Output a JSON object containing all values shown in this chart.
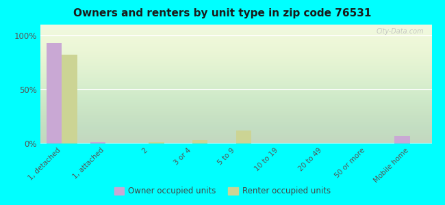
{
  "title": "Owners and renters by unit type in zip code 76531",
  "categories": [
    "1, detached",
    "1, attached",
    "2",
    "3 or 4",
    "5 to 9",
    "10 to 19",
    "20 to 49",
    "50 or more",
    "Mobile home"
  ],
  "owner_values": [
    93,
    1,
    0,
    0,
    0,
    0,
    0,
    0,
    7
  ],
  "renter_values": [
    82,
    0,
    1,
    3,
    12,
    0,
    0,
    0,
    0
  ],
  "owner_color": "#c9a8d4",
  "renter_color": "#ccd494",
  "background_color": "#00ffff",
  "yticks": [
    0,
    50,
    100
  ],
  "ylim": [
    0,
    110
  ],
  "bar_width": 0.35,
  "legend_owner": "Owner occupied units",
  "legend_renter": "Renter occupied units",
  "watermark": "City-Data.com"
}
